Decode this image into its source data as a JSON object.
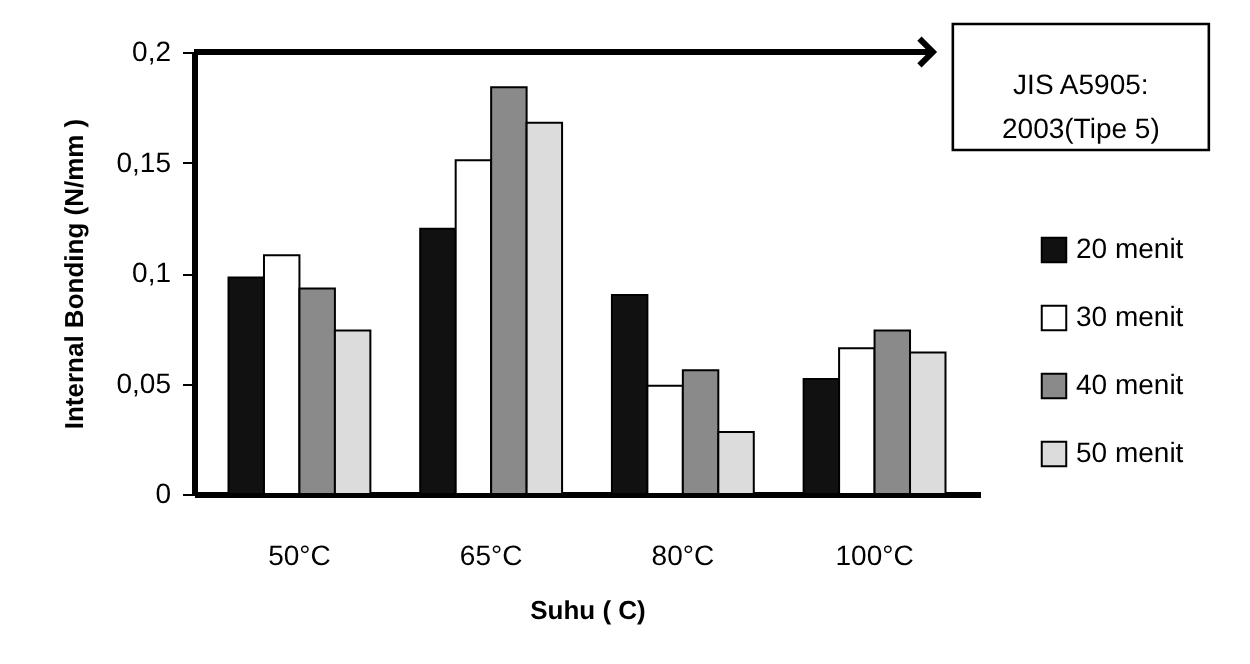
{
  "chart_data": {
    "type": "bar",
    "xlabel": "Suhu ( C)",
    "ylabel": "Internal Bonding (N/mm )",
    "categories": [
      "50°C",
      "65°C",
      "80°C",
      "100°C"
    ],
    "series": [
      {
        "name": "20 menit",
        "color": "#111111",
        "values": [
          0.098,
          0.12,
          0.09,
          0.052
        ]
      },
      {
        "name": "30 menit",
        "color": "#ffffff",
        "values": [
          0.108,
          0.151,
          0.049,
          0.066
        ]
      },
      {
        "name": "40 menit",
        "color": "#8a8a8a",
        "values": [
          0.093,
          0.184,
          0.056,
          0.074
        ]
      },
      {
        "name": "50 menit",
        "color": "#dcdcdc",
        "values": [
          0.074,
          0.168,
          0.028,
          0.064
        ]
      }
    ],
    "ylim": [
      0,
      0.2
    ],
    "yticks": [
      {
        "value": 0,
        "label": "0"
      },
      {
        "value": 0.05,
        "label": "0,05"
      },
      {
        "value": 0.1,
        "label": "0,1"
      },
      {
        "value": 0.15,
        "label": "0,15"
      },
      {
        "value": 0.2,
        "label": "0,2"
      }
    ],
    "ref_lines": [
      {
        "axis": "y",
        "value": 0.2,
        "color": "#000000"
      }
    ],
    "annotations": [
      "JIS A5905:\n2003(Tipe 5)"
    ],
    "grid": false,
    "legend": "right"
  }
}
